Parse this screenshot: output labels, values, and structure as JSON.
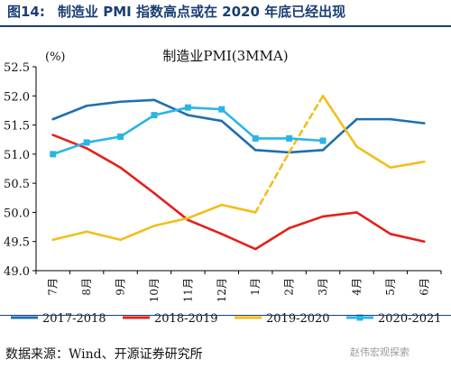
{
  "figure": {
    "number": "图14:",
    "title": "制造业 PMI 指数高点或在 2020 年底已经出现",
    "source": "数据来源：Wind、开源证券研究所",
    "watermark": "赵伟宏观探索"
  },
  "chart_data": {
    "type": "line",
    "title": "制造业PMI(3MMA)",
    "unit_label": "(%)",
    "xlabel": "",
    "ylabel": "",
    "categories": [
      "7月",
      "8月",
      "9月",
      "10月",
      "11月",
      "12月",
      "1月",
      "2月",
      "3月",
      "4月",
      "5月",
      "6月"
    ],
    "ylim": [
      49.0,
      52.5
    ],
    "yticks": [
      "49.0",
      "49.5",
      "50.0",
      "50.5",
      "51.0",
      "51.5",
      "52.0",
      "52.5"
    ],
    "grid": false,
    "legend_position": "bottom",
    "series": [
      {
        "name": "2017-2018",
        "color": "#1f6eb0",
        "style": "solid",
        "values": [
          51.6,
          51.83,
          51.9,
          51.93,
          51.67,
          51.57,
          51.07,
          51.03,
          51.07,
          51.6,
          51.6,
          51.53
        ]
      },
      {
        "name": "2018-2019",
        "color": "#e3201b",
        "style": "solid",
        "values": [
          51.33,
          51.1,
          50.77,
          50.33,
          49.87,
          49.63,
          49.37,
          49.73,
          49.93,
          50.0,
          49.63,
          49.5
        ]
      },
      {
        "name": "2019-2020",
        "color": "#f2be1a",
        "style": "solid",
        "dashed_segments": [
          [
            6,
            8
          ]
        ],
        "values": [
          49.53,
          49.67,
          49.53,
          49.77,
          49.9,
          50.13,
          50.0,
          51.03,
          52.0,
          51.13,
          50.77,
          50.87
        ]
      },
      {
        "name": "2020-2021",
        "color": "#29b5e8",
        "style": "solid-marker",
        "marker": "square",
        "values": [
          51.0,
          51.2,
          51.3,
          51.67,
          51.8,
          51.77,
          51.27,
          51.27,
          51.23,
          null,
          null,
          null
        ]
      }
    ]
  }
}
